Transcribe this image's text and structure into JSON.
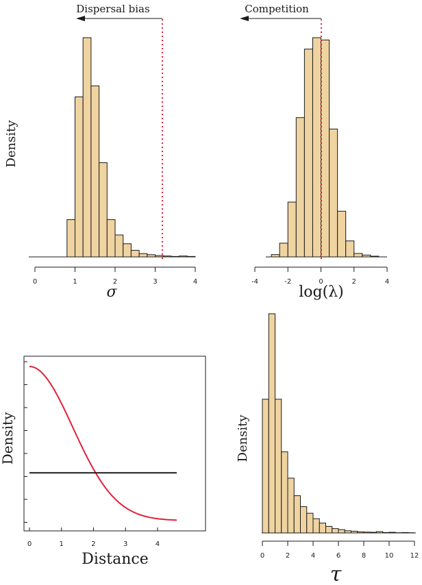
{
  "chart_data": [
    {
      "type": "bar",
      "panel": "top-left",
      "title": "",
      "xlabel": "σ",
      "ylabel": "Density",
      "xlim": [
        0,
        4
      ],
      "xticks": [
        0,
        1,
        2,
        3,
        4
      ],
      "bin_width": 0.2,
      "bin_starts": [
        0.8,
        1.0,
        1.2,
        1.4,
        1.6,
        1.8,
        2.0,
        2.2,
        2.4,
        2.6,
        2.8,
        3.0,
        3.2,
        3.4,
        3.6,
        3.8
      ],
      "values": [
        0.17,
        0.73,
        1.0,
        0.78,
        0.43,
        0.17,
        0.1,
        0.06,
        0.03,
        0.015,
        0.01,
        0.006,
        0.004,
        0.002,
        0.004,
        0.002
      ],
      "reference_line_x": 3.2,
      "annotation": "Dispersal bias",
      "arrow_direction": "left"
    },
    {
      "type": "bar",
      "panel": "top-right",
      "title": "",
      "xlabel": "log(λ)",
      "ylabel": "",
      "xlim": [
        -4,
        4
      ],
      "xticks": [
        -4,
        -2,
        0,
        2,
        4
      ],
      "bin_width": 0.5,
      "bin_starts": [
        -3.0,
        -2.5,
        -2.0,
        -1.5,
        -1.0,
        -0.5,
        0.0,
        0.5,
        1.0,
        1.5,
        2.0,
        2.5,
        3.0
      ],
      "values": [
        0.01,
        0.06,
        0.24,
        0.61,
        0.91,
        0.96,
        0.95,
        0.56,
        0.2,
        0.07,
        0.015,
        0.008,
        0.003
      ],
      "reference_line_x": 0,
      "annotation": "Competition",
      "arrow_direction": "left"
    },
    {
      "type": "line",
      "panel": "bottom-left",
      "title": "",
      "xlabel": "Distance",
      "ylabel": "Density",
      "xlim": [
        0,
        4.6
      ],
      "xticks": [
        0,
        1,
        2,
        3,
        4
      ],
      "series": [
        {
          "color": "#e0203a",
          "kind": "half-normal",
          "sigma": 1.35,
          "height": 1.0,
          "baseline": 0.0
        },
        {
          "color": "#1a1a1a",
          "kind": "constant",
          "value": 0.31
        }
      ]
    },
    {
      "type": "bar",
      "panel": "bottom-right",
      "title": "",
      "xlabel": "τ",
      "ylabel": "Density",
      "xlim": [
        0,
        12
      ],
      "xticks": [
        0,
        2,
        4,
        6,
        8,
        10,
        12
      ],
      "bin_width": 0.5,
      "bin_starts": [
        0,
        0.5,
        1.0,
        1.5,
        2.0,
        2.5,
        3.0,
        3.5,
        4.0,
        4.5,
        5.0,
        5.5,
        6.0,
        6.5,
        7.0,
        7.5,
        8.0,
        8.5,
        9.0,
        9.5,
        10.0,
        10.5,
        11.0,
        11.5
      ],
      "values": [
        0.61,
        1.0,
        0.61,
        0.37,
        0.25,
        0.17,
        0.12,
        0.09,
        0.065,
        0.045,
        0.03,
        0.02,
        0.015,
        0.01,
        0.008,
        0.005,
        0.004,
        0.003,
        0.006,
        0.002,
        0.003,
        0.001,
        0.002,
        0.001
      ]
    }
  ]
}
